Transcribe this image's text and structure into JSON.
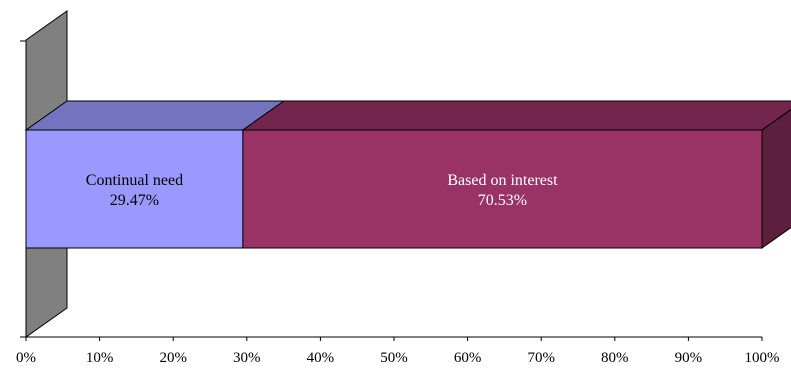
{
  "chart_data": {
    "type": "bar",
    "orientation": "horizontal",
    "stacked": true,
    "three_d": true,
    "title": "",
    "xlabel": "",
    "ylabel": "",
    "xlim": [
      0,
      100
    ],
    "x_ticks": [
      "0%",
      "10%",
      "20%",
      "30%",
      "40%",
      "50%",
      "60%",
      "70%",
      "80%",
      "90%",
      "100%"
    ],
    "grid": false,
    "legend": "none",
    "series": [
      {
        "name": "Continual need",
        "value_label": "29.47%",
        "value": 29.47,
        "color": "#9999ff",
        "label_color": "#000000"
      },
      {
        "name": "Based on interest",
        "value_label": "70.53%",
        "value": 70.53,
        "color": "#993366",
        "label_color": "#ffffff"
      }
    ],
    "wall_color": "#808080"
  }
}
